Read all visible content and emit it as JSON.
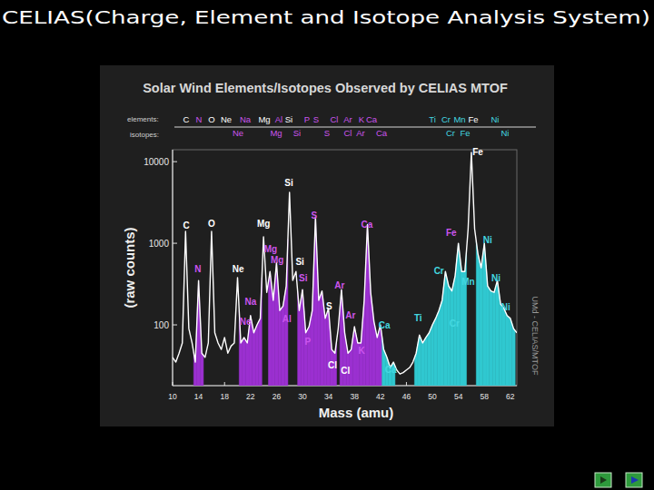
{
  "slide_title": "CELIAS(Charge, Element and Isotope Analysis System)",
  "chart_data": {
    "type": "line",
    "title": "Solar Wind Elements/Isotopes Observed by CELIAS MTOF",
    "header": {
      "elements_label": "elements:",
      "elements": [
        {
          "text": "C",
          "color": "#ffffff"
        },
        {
          "text": "N",
          "color": "#cc55ee"
        },
        {
          "text": "O",
          "color": "#ffffff"
        },
        {
          "text": "Ne",
          "color": "#ffffff"
        },
        {
          "text": "Na",
          "color": "#cc55ee"
        },
        {
          "text": "Mg",
          "color": "#ffffff"
        },
        {
          "text": "Al",
          "color": "#cc55ee"
        },
        {
          "text": "Si",
          "color": "#ffffff"
        },
        {
          "text": "P",
          "color": "#cc55ee"
        },
        {
          "text": "S",
          "color": "#cc55ee"
        },
        {
          "text": "Cl",
          "color": "#cc55ee"
        },
        {
          "text": "Ar",
          "color": "#cc55ee"
        },
        {
          "text": "K",
          "color": "#cc55ee"
        },
        {
          "text": "Ca",
          "color": "#cc55ee"
        },
        {
          "text": "Ti",
          "color": "#44d8e0"
        },
        {
          "text": "Cr",
          "color": "#44d8e0"
        },
        {
          "text": "Mn",
          "color": "#44d8e0"
        },
        {
          "text": "Fe",
          "color": "#ffffff"
        },
        {
          "text": "Ni",
          "color": "#44d8e0"
        }
      ],
      "isotopes_label": "isotopes:",
      "isotopes": [
        {
          "text": "Ne",
          "color": "#cc55ee"
        },
        {
          "text": "Mg",
          "color": "#cc55ee"
        },
        {
          "text": "Si",
          "color": "#cc55ee"
        },
        {
          "text": "S",
          "color": "#cc55ee"
        },
        {
          "text": "Cl",
          "color": "#cc55ee"
        },
        {
          "text": "Ar",
          "color": "#cc55ee"
        },
        {
          "text": "Ca",
          "color": "#cc55ee"
        },
        {
          "text": "Cr",
          "color": "#44d8e0"
        },
        {
          "text": "Fe",
          "color": "#44d8e0"
        },
        {
          "text": "Ni",
          "color": "#44d8e0"
        }
      ]
    },
    "x_label": "Mass (amu)",
    "y_label": "(raw counts)",
    "side_text": "UMd - CELIAS/MTOF",
    "log": "y",
    "xlim": [
      10,
      63
    ],
    "xticks": [
      10,
      14,
      18,
      22,
      26,
      30,
      34,
      38,
      42,
      46,
      50,
      54,
      58,
      62
    ],
    "ylim": [
      18,
      14000
    ],
    "yticks": [
      100,
      1000,
      10000
    ],
    "x": [
      10,
      10.5,
      11,
      11.5,
      12,
      12.5,
      13,
      13.5,
      14,
      14.5,
      15,
      15.5,
      16,
      16.5,
      17,
      17.5,
      18,
      18.5,
      19,
      19.5,
      20,
      20.5,
      21,
      21.5,
      22,
      22.5,
      23,
      23.5,
      24,
      24.5,
      25,
      25.5,
      26,
      26.5,
      27,
      27.5,
      28,
      28.5,
      29,
      29.5,
      30,
      30.5,
      31,
      31.5,
      32,
      32.5,
      33,
      33.5,
      34,
      34.5,
      35,
      35.5,
      36,
      36.5,
      37,
      37.5,
      38,
      38.5,
      39,
      39.5,
      40,
      40.5,
      41,
      41.5,
      42,
      42.5,
      43,
      43.5,
      44,
      44.5,
      45,
      45.5,
      46,
      46.5,
      47,
      47.5,
      48,
      48.5,
      49,
      49.5,
      50,
      50.5,
      51,
      51.5,
      52,
      52.5,
      53,
      53.5,
      54,
      54.5,
      55,
      55.5,
      56,
      56.5,
      57,
      57.5,
      58,
      58.5,
      59,
      59.5,
      60,
      60.5,
      61,
      61.5,
      62,
      62.5,
      63
    ],
    "series": [
      {
        "color": "#ffffff",
        "values": [
          40,
          35,
          45,
          60,
          1400,
          90,
          60,
          35,
          350,
          45,
          40,
          60,
          1400,
          80,
          60,
          50,
          70,
          45,
          55,
          60,
          380,
          60,
          70,
          60,
          130,
          80,
          100,
          120,
          1200,
          250,
          450,
          200,
          580,
          150,
          170,
          300,
          4200,
          350,
          450,
          150,
          270,
          80,
          95,
          150,
          2100,
          200,
          260,
          120,
          160,
          50,
          45,
          90,
          270,
          80,
          45,
          50,
          95,
          60,
          60,
          200,
          1700,
          250,
          110,
          70,
          100,
          50,
          40,
          30,
          35,
          28,
          25,
          26,
          28,
          30,
          35,
          45,
          75,
          60,
          70,
          80,
          100,
          120,
          150,
          200,
          450,
          300,
          260,
          400,
          1000,
          450,
          450,
          1500,
          13000,
          1500,
          750,
          500,
          1000,
          300,
          260,
          250,
          350,
          180,
          160,
          130,
          120,
          90,
          80
        ],
        "colors": [
          null,
          null,
          null,
          null,
          null,
          null,
          null,
          "#9b30d0",
          "#9b30d0",
          "#9b30d0",
          null,
          null,
          null,
          null,
          null,
          null,
          null,
          null,
          null,
          null,
          null,
          "#9b30d0",
          "#9b30d0",
          "#9b30d0",
          "#9b30d0",
          "#9b30d0",
          "#9b30d0",
          "#9b30d0",
          null,
          null,
          "#9b30d0",
          "#9b30d0",
          "#9b30d0",
          "#9b30d0",
          "#9b30d0",
          "#9b30d0",
          null,
          null,
          null,
          "#9b30d0",
          "#9b30d0",
          "#9b30d0",
          "#9b30d0",
          "#9b30d0",
          "#9b30d0",
          "#9b30d0",
          "#9b30d0",
          "#9b30d0",
          "#9b30d0",
          "#9b30d0",
          "#9b30d0",
          null,
          "#9b30d0",
          "#9b30d0",
          "#9b30d0",
          "#9b30d0",
          "#9b30d0",
          "#9b30d0",
          "#9b30d0",
          "#9b30d0",
          "#9b30d0",
          "#9b30d0",
          "#9b30d0",
          "#9b30d0",
          "#9b30d0",
          "#30c8d0",
          "#30c8d0",
          "#30c8d0",
          "#30c8d0",
          null,
          null,
          null,
          null,
          null,
          null,
          "#30c8d0",
          "#30c8d0",
          "#30c8d0",
          "#30c8d0",
          "#30c8d0",
          "#30c8d0",
          "#30c8d0",
          "#30c8d0",
          "#30c8d0",
          "#30c8d0",
          "#30c8d0",
          "#30c8d0",
          "#30c8d0",
          "#30c8d0",
          "#30c8d0",
          "#30c8d0",
          null,
          null,
          null,
          "#30c8d0",
          "#30c8d0",
          "#30c8d0",
          "#30c8d0",
          "#30c8d0",
          "#30c8d0",
          "#30c8d0",
          "#30c8d0",
          "#30c8d0",
          "#30c8d0",
          "#30c8d0",
          "#30c8d0",
          null
        ]
      }
    ],
    "annotations": [
      {
        "text": "C",
        "x": 12.1,
        "y": 1500,
        "color": "#ffffff"
      },
      {
        "text": "O",
        "x": 16.0,
        "y": 1600,
        "color": "#ffffff"
      },
      {
        "text": "N",
        "x": 13.9,
        "y": 440,
        "color": "#cc55ee"
      },
      {
        "text": "Ne",
        "x": 20.1,
        "y": 440,
        "color": "#ffffff"
      },
      {
        "text": "Mg",
        "x": 24.0,
        "y": 1600,
        "color": "#ffffff"
      },
      {
        "text": "Si",
        "x": 27.9,
        "y": 5000,
        "color": "#ffffff"
      },
      {
        "text": "S",
        "x": 31.8,
        "y": 2000,
        "color": "#cc55ee"
      },
      {
        "text": "Ca",
        "x": 39.9,
        "y": 1550,
        "color": "#cc55ee"
      },
      {
        "text": "Fe",
        "x": 57.0,
        "y": 12000,
        "color": "#ffffff"
      },
      {
        "text": "Fe",
        "x": 52.9,
        "y": 1230,
        "color": "#cc55ee"
      },
      {
        "text": "Ni",
        "x": 58.5,
        "y": 1000,
        "color": "#44d8e0"
      },
      {
        "text": "Mg",
        "x": 25.1,
        "y": 770,
        "color": "#cc55ee"
      },
      {
        "text": "Mg",
        "x": 26.1,
        "y": 570,
        "color": "#cc55ee"
      },
      {
        "text": "Si",
        "x": 29.6,
        "y": 540,
        "color": "#ffffff"
      },
      {
        "text": "Si",
        "x": 30.1,
        "y": 340,
        "color": "#cc55ee"
      },
      {
        "text": "Na",
        "x": 22.0,
        "y": 175,
        "color": "#cc55ee"
      },
      {
        "text": "Ne",
        "x": 21.2,
        "y": 100,
        "color": "#cc55ee"
      },
      {
        "text": "Al",
        "x": 27.6,
        "y": 108,
        "color": "#cc55ee"
      },
      {
        "text": "P",
        "x": 30.8,
        "y": 57,
        "color": "#cc55ee"
      },
      {
        "text": "S",
        "x": 34.1,
        "y": 155,
        "color": "#ffffff"
      },
      {
        "text": "Ar",
        "x": 35.7,
        "y": 280,
        "color": "#cc55ee"
      },
      {
        "text": "Ar",
        "x": 37.4,
        "y": 120,
        "color": "#cc55ee"
      },
      {
        "text": "Cl",
        "x": 34.6,
        "y": 29,
        "color": "#ffffff"
      },
      {
        "text": "Cl",
        "x": 36.6,
        "y": 25,
        "color": "#ffffff"
      },
      {
        "text": "K",
        "x": 39.1,
        "y": 44,
        "color": "#cc55ee"
      },
      {
        "text": "Ca",
        "x": 42.6,
        "y": 90,
        "color": "#44d8e0"
      },
      {
        "text": "Ca",
        "x": 43.6,
        "y": 26,
        "color": "#44d8e0"
      },
      {
        "text": "Ti",
        "x": 47.8,
        "y": 110,
        "color": "#44d8e0"
      },
      {
        "text": "Cr",
        "x": 51.0,
        "y": 420,
        "color": "#44d8e0"
      },
      {
        "text": "Cr",
        "x": 53.4,
        "y": 95,
        "color": "#44d8e0"
      },
      {
        "text": "Mn",
        "x": 55.5,
        "y": 310,
        "color": "#44d8e0"
      },
      {
        "text": "Ni",
        "x": 59.8,
        "y": 340,
        "color": "#44d8e0"
      },
      {
        "text": "Ni",
        "x": 61.3,
        "y": 150,
        "color": "#44d8e0"
      }
    ]
  }
}
